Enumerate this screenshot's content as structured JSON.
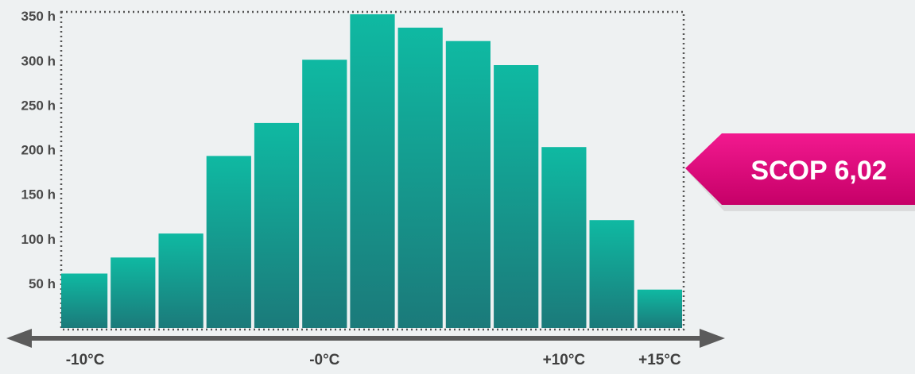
{
  "chart_data": {
    "type": "bar",
    "categories": [
      "-10°C",
      "",
      "",
      "",
      "",
      "-0°C",
      "",
      "",
      "",
      "",
      "+10°C",
      "",
      "+15°C"
    ],
    "values": [
      61,
      79,
      106,
      193,
      230,
      301,
      352,
      337,
      322,
      295,
      203,
      121,
      43
    ],
    "y_ticks": [
      "50 h",
      "100 h",
      "150 h",
      "200 h",
      "250 h",
      "300 h",
      "350 h"
    ],
    "x_labels": [
      "-10°C",
      "-0°C",
      "+10°C",
      "+15°C"
    ],
    "ylim": [
      0,
      352
    ],
    "grid": false,
    "bar_color": "#0eaa98",
    "bar_color_dark": "#1a7f7c",
    "annotation": {
      "text": "SCOP 6,02",
      "color": "#e0007a"
    }
  }
}
